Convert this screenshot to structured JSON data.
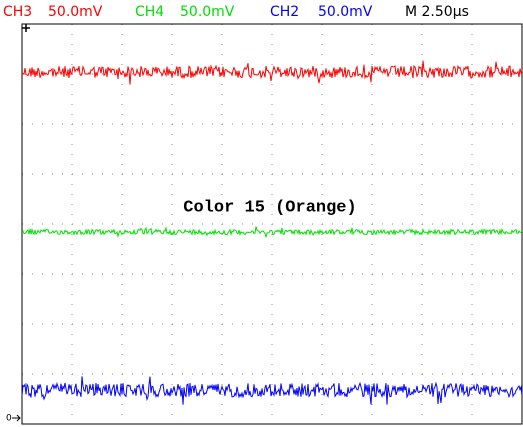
{
  "header": {
    "channels": [
      {
        "name": "CH3",
        "scale": "50.0mV",
        "color": "#ff0000"
      },
      {
        "name": "CH4",
        "scale": "50.0mV",
        "color": "#00e000"
      },
      {
        "name": "CH2",
        "scale": "50.0mV",
        "color": "#0000ff"
      }
    ],
    "timebase": "M 2.50µs"
  },
  "annotation": "Color 15 (Orange)",
  "ground_marker": "0"
}
